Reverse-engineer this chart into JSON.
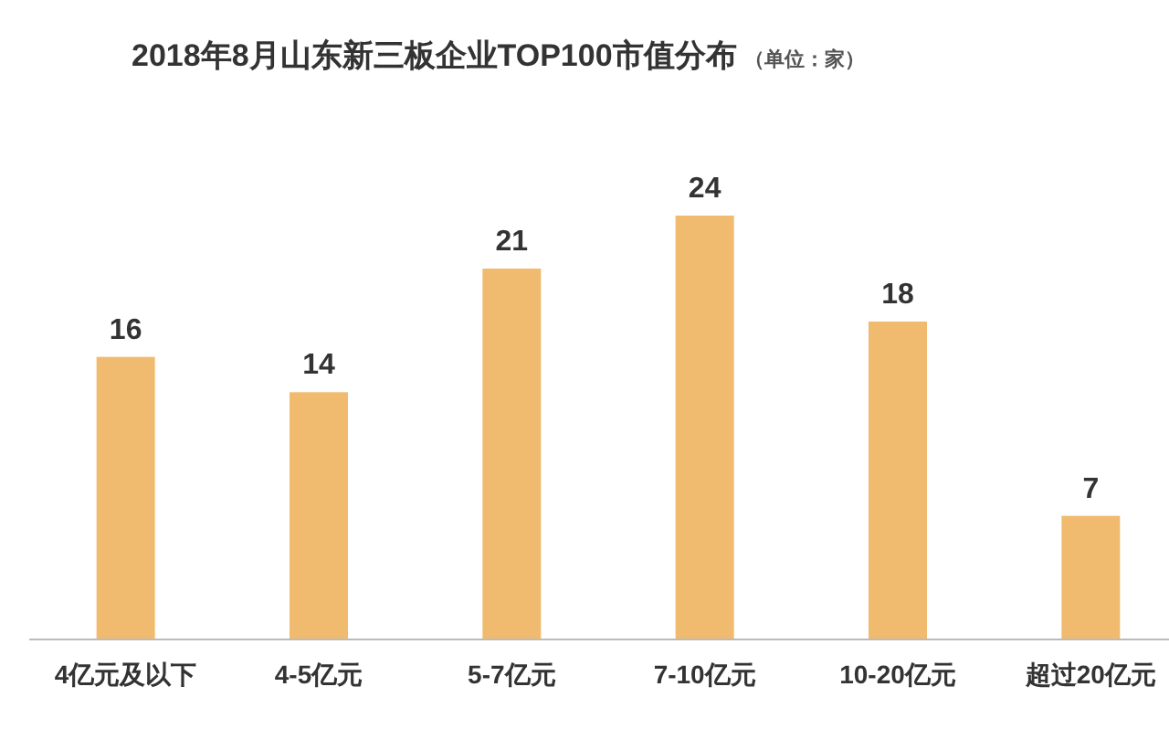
{
  "chart_data": {
    "type": "bar",
    "title": "2018年8月山东新三板企业TOP100市值分布",
    "subtitle": "（单位：家）",
    "categories": [
      "4亿元及以下",
      "4-5亿元",
      "5-7亿元",
      "7-10亿元",
      "10-20亿元",
      "超过20亿元"
    ],
    "values": [
      16,
      14,
      21,
      24,
      18,
      7
    ],
    "color": "#f1bb6f",
    "data_labels": true
  }
}
